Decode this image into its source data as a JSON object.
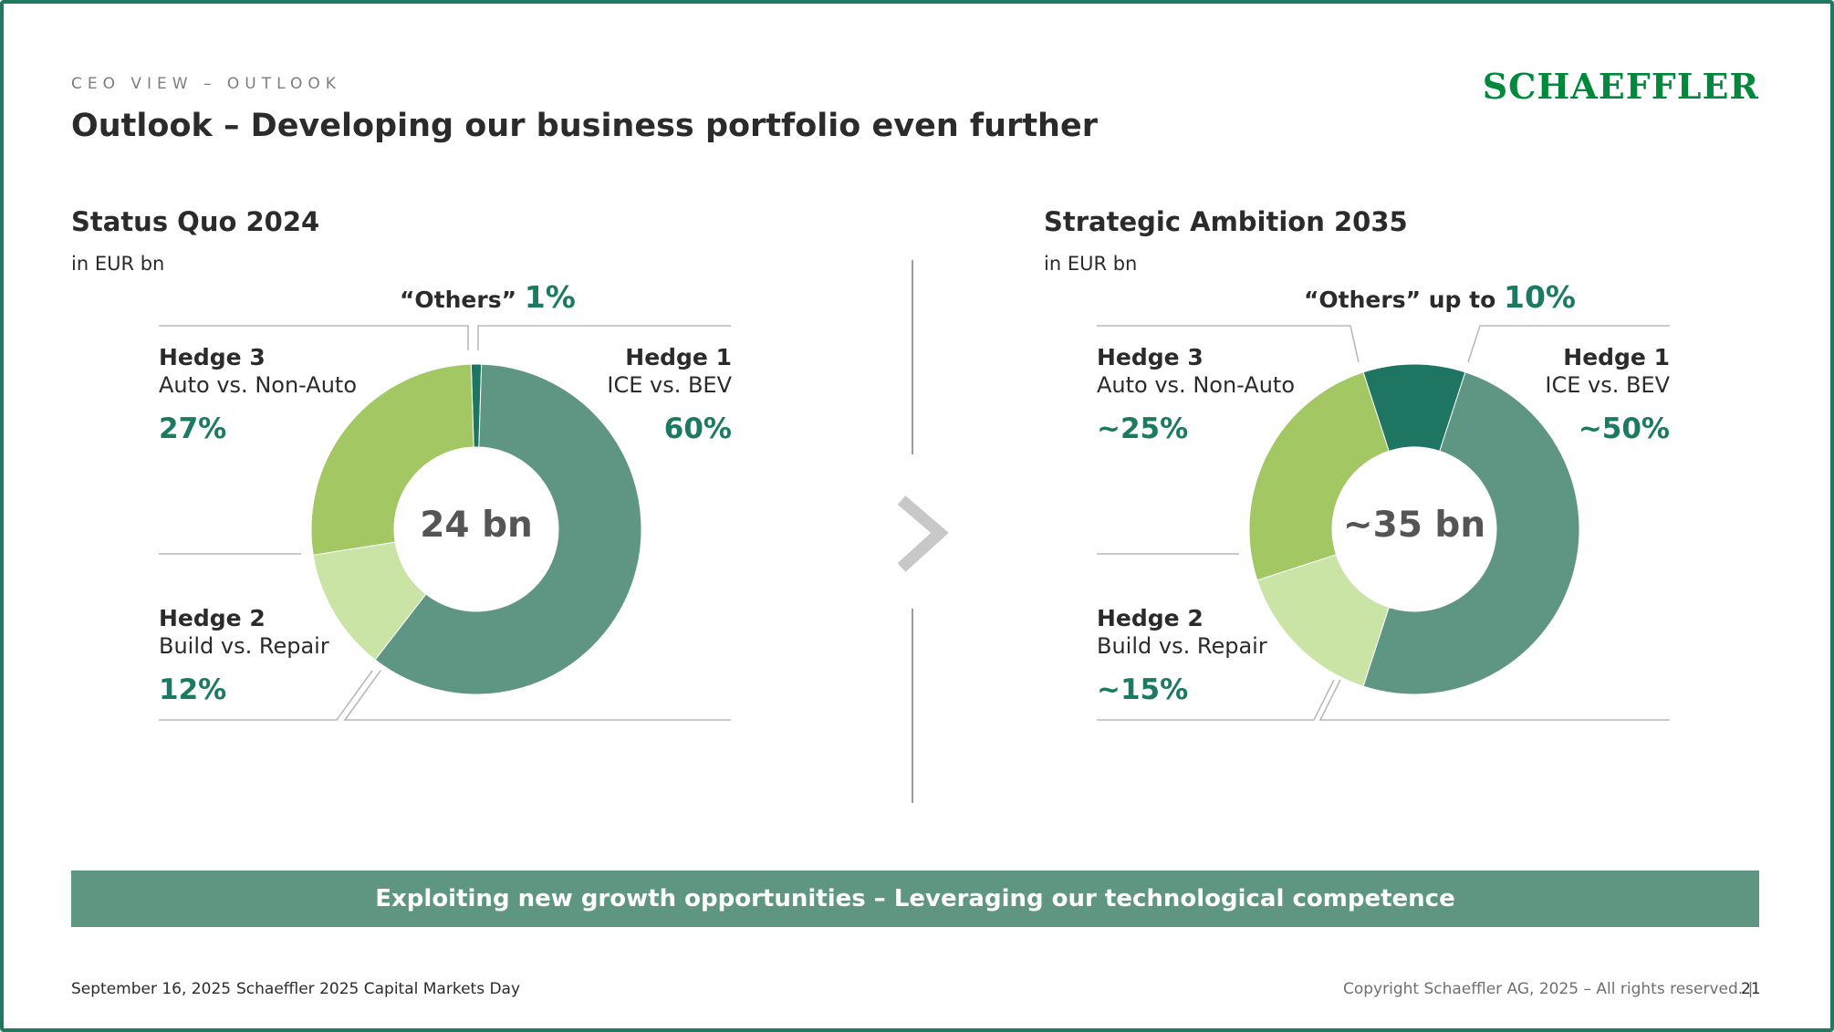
{
  "header": {
    "eyebrow": "CEO VIEW – OUTLOOK",
    "title": "Outlook – Developing our business portfolio even further",
    "logo_text": "SCHAEFFLER"
  },
  "colors": {
    "hedge1": "#5f9683",
    "hedge2": "#cae4a6",
    "hedge3": "#a2c763",
    "others": "#1e7561",
    "accent": "#1b7b62",
    "banner": "#5e9682"
  },
  "left": {
    "title": "Status Quo 2024",
    "unit": "in EUR bn",
    "center": "24 bn",
    "others_label": "“Others”",
    "others_value": "1%",
    "hedge3": {
      "name": "Hedge 3",
      "desc": "Auto vs. Non-Auto",
      "value": "27%"
    },
    "hedge1": {
      "name": "Hedge 1",
      "desc": "ICE vs. BEV",
      "value": "60%"
    },
    "hedge2": {
      "name": "Hedge 2",
      "desc": "Build vs. Repair",
      "value": "12%"
    }
  },
  "right": {
    "title": "Strategic Ambition 2035",
    "unit": "in EUR bn",
    "center": "~35 bn",
    "others_label": "“Others” up to",
    "others_value": "10%",
    "hedge3": {
      "name": "Hedge 3",
      "desc": "Auto vs. Non-Auto",
      "value": "~25%"
    },
    "hedge1": {
      "name": "Hedge 1",
      "desc": "ICE vs. BEV",
      "value": "~50%"
    },
    "hedge2": {
      "name": "Hedge 2",
      "desc": "Build vs. Repair",
      "value": "~15%"
    }
  },
  "banner": "Exploiting new growth opportunities – Leveraging our technological competence",
  "footer": {
    "date": "September 16, 2025",
    "event": "Schaeffler 2025 Capital Markets Day",
    "copyright": "Copyright Schaeffler AG, 2025 – All rights reserved. |",
    "page": "21"
  },
  "chart_data": [
    {
      "type": "pie",
      "title": "Status Quo 2024",
      "unit": "in EUR bn",
      "total": "24 bn",
      "categories": [
        "Others",
        "Hedge 1",
        "Hedge 2",
        "Hedge 3"
      ],
      "values": [
        1,
        60,
        12,
        27
      ]
    },
    {
      "type": "pie",
      "title": "Strategic Ambition 2035",
      "unit": "in EUR bn",
      "total": "~35 bn",
      "categories": [
        "Others",
        "Hedge 1",
        "Hedge 2",
        "Hedge 3"
      ],
      "values": [
        10,
        50,
        15,
        25
      ]
    }
  ]
}
